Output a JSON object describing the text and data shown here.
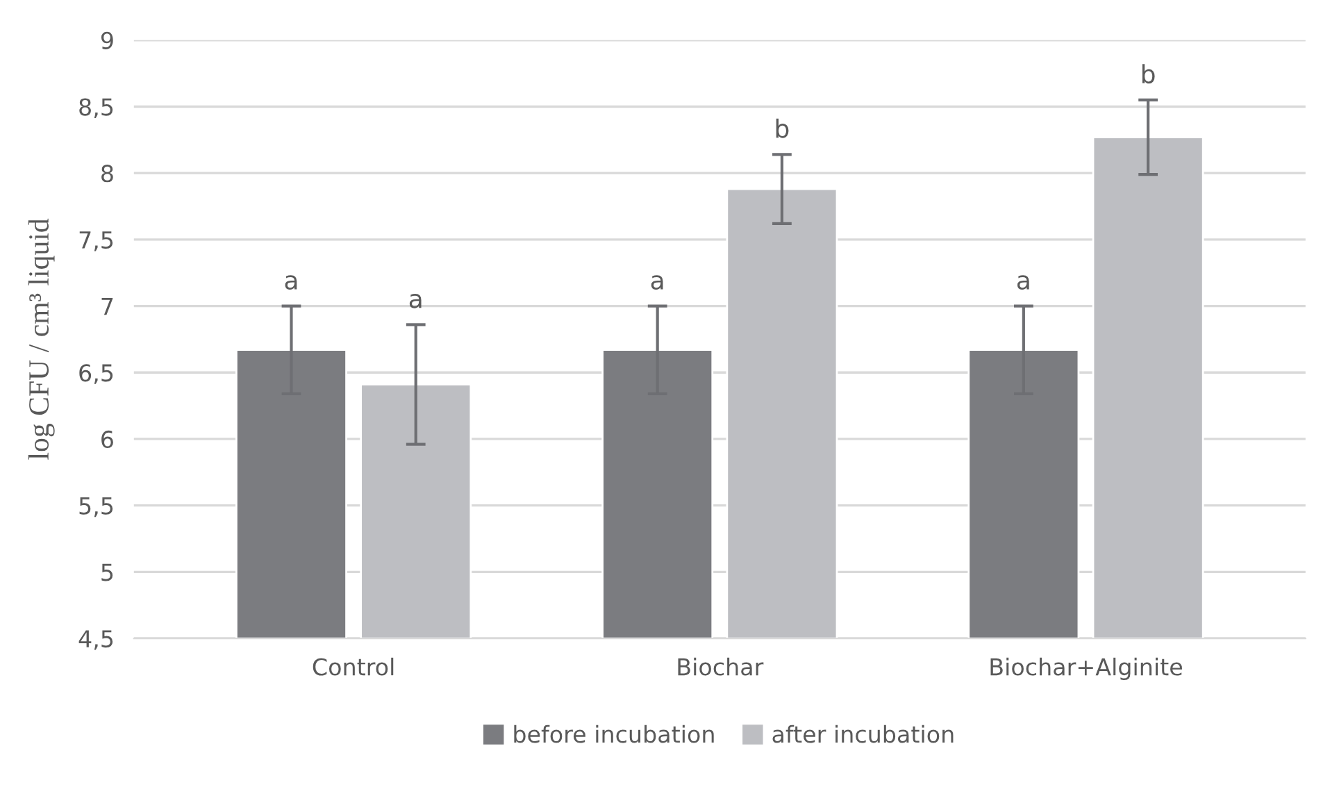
{
  "chart_data": {
    "type": "bar",
    "ylabel": "log CFU / cm³ liquid",
    "categories": [
      "Control",
      "Biochar",
      "Biochar+Alginite"
    ],
    "series": [
      {
        "name": "before incubation",
        "color": "#7b7c80",
        "values": [
          6.67,
          6.67,
          6.67
        ],
        "errors": [
          0.33,
          0.33,
          0.33
        ],
        "value_labels": [
          "a",
          "a",
          "a"
        ]
      },
      {
        "name": "after incubation",
        "color": "#bdbec2",
        "values": [
          6.41,
          7.88,
          8.27
        ],
        "errors": [
          0.45,
          0.26,
          0.28
        ],
        "value_labels": [
          "a",
          "b",
          "b"
        ]
      }
    ],
    "ylim": [
      4.5,
      9
    ],
    "yticks": [
      {
        "value": 4.5,
        "label": "4,5"
      },
      5,
      {
        "value": 5.5,
        "label": "5,5"
      },
      6,
      {
        "value": 6.5,
        "label": "6,5"
      },
      7,
      {
        "value": 7.5,
        "label": "7,5"
      },
      8,
      {
        "value": 8.5,
        "label": "8,5"
      },
      9
    ],
    "grid": "y",
    "legend": "bottom"
  }
}
